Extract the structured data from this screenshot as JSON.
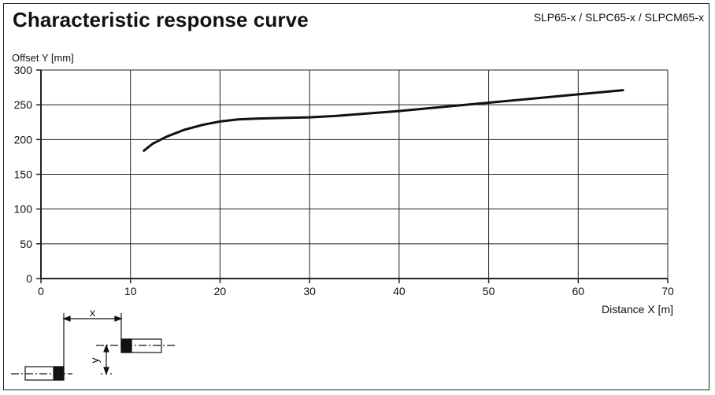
{
  "header": {
    "title": "Characteristic response curve",
    "models": "SLP65-x / SLPC65-x / SLPCM65-x"
  },
  "chart_data": {
    "type": "line",
    "ylabel": "Offset Y [mm]",
    "xlabel": "Distance X [m]",
    "xlim": [
      0,
      70
    ],
    "ylim": [
      0,
      300
    ],
    "x_ticks": [
      0,
      10,
      20,
      30,
      40,
      50,
      60,
      70
    ],
    "y_ticks": [
      0,
      50,
      100,
      150,
      200,
      250,
      300
    ],
    "grid": true,
    "series": [
      {
        "x": [
          11.5,
          12.5,
          14,
          16,
          18,
          20,
          22,
          24,
          27,
          30,
          33,
          36,
          40,
          45,
          50,
          55,
          60,
          65
        ],
        "y": [
          184,
          194,
          204,
          214,
          221,
          226,
          229,
          230,
          231,
          232,
          234,
          237,
          241,
          247,
          253,
          259,
          265,
          271
        ]
      }
    ]
  },
  "diagram": {
    "x_label": "x",
    "y_label": "y"
  },
  "colors": {
    "line": "#111111",
    "grid": "#222222",
    "background": "#ffffff"
  }
}
